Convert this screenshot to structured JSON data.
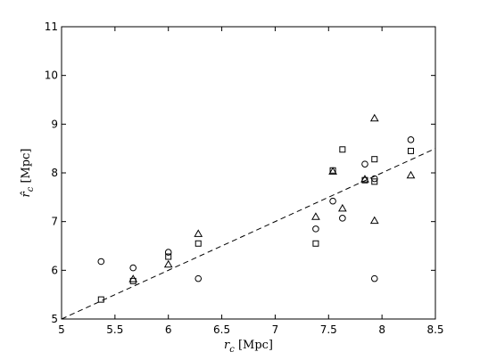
{
  "chart_data": {
    "type": "scatter",
    "xlabel": "r_c [Mpc]",
    "ylabel": "r̂_c [Mpc]",
    "xlim": [
      5,
      8.5
    ],
    "ylim": [
      5,
      11
    ],
    "xticks": [
      5,
      5.5,
      6,
      6.5,
      7,
      7.5,
      8,
      8.5
    ],
    "xtick_labels": [
      "5",
      "5.5",
      "6",
      "6.5",
      "7",
      "7.5",
      "8",
      "8.5"
    ],
    "yticks": [
      5,
      6,
      7,
      8,
      9,
      10,
      11
    ],
    "ytick_labels": [
      "5",
      "6",
      "7",
      "8",
      "9",
      "10",
      "11"
    ],
    "grid": false,
    "legend": "none",
    "reference_line": {
      "style": "dashed",
      "x": [
        5,
        8.5
      ],
      "y": [
        5,
        8.5
      ]
    },
    "series": [
      {
        "marker": "circle",
        "x": [
          5.37,
          5.67,
          6.0,
          6.28,
          7.38,
          7.54,
          7.63,
          7.84,
          7.93,
          7.93,
          8.27
        ],
        "y": [
          6.18,
          6.05,
          6.37,
          5.83,
          6.85,
          7.42,
          7.07,
          8.18,
          7.88,
          5.83,
          8.68
        ]
      },
      {
        "marker": "square",
        "x": [
          5.37,
          5.67,
          6.0,
          6.28,
          7.38,
          7.54,
          7.63,
          7.84,
          7.93,
          7.93,
          8.27
        ],
        "y": [
          5.4,
          5.78,
          6.28,
          6.55,
          6.55,
          8.05,
          8.48,
          7.85,
          8.28,
          7.82,
          8.45
        ]
      },
      {
        "marker": "triangle",
        "x": [
          5.67,
          6.0,
          6.28,
          7.38,
          7.54,
          7.63,
          7.84,
          7.93,
          7.93,
          8.27
        ],
        "y": [
          5.82,
          6.12,
          6.75,
          7.1,
          8.03,
          7.27,
          7.87,
          9.12,
          7.02,
          7.95
        ]
      }
    ]
  }
}
